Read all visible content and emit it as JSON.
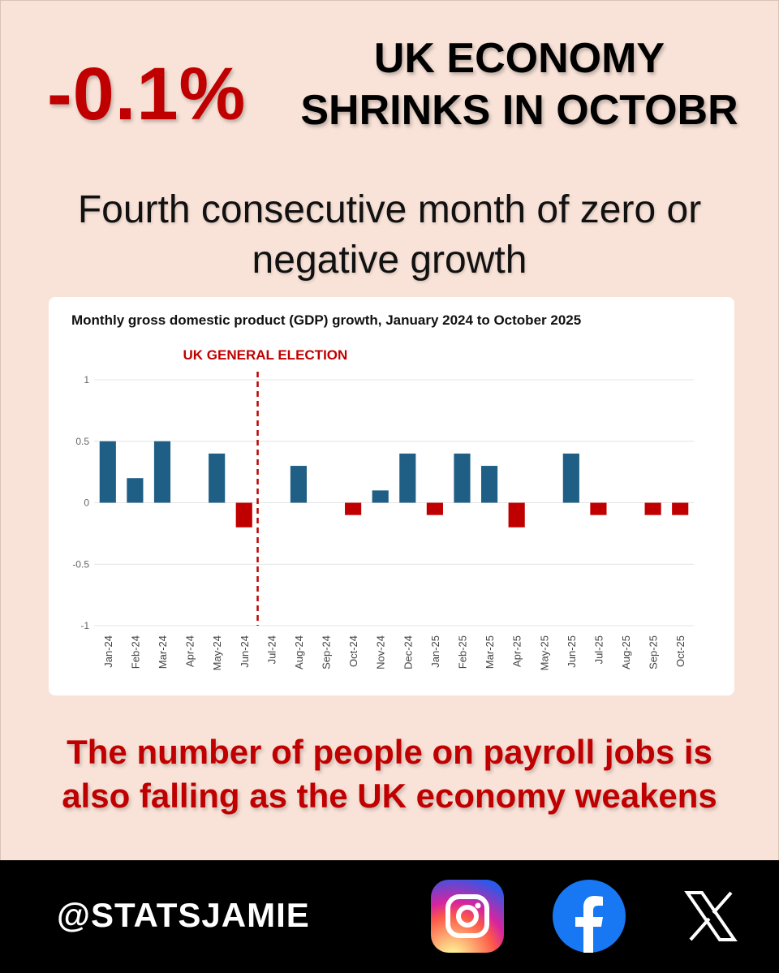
{
  "header": {
    "big_number": "-0.1%",
    "headline_line1": "UK ECONOMY",
    "headline_line2": "SHRINKS IN OCTOBR",
    "subhead_line1": "Fourth consecutive month of zero or",
    "subhead_line2": "negative growth"
  },
  "chart_data": {
    "type": "bar",
    "title": "Monthly gross domestic product (GDP) growth, January 2024 to October 2025",
    "xlabel": "",
    "ylabel": "",
    "ylim": [
      -1,
      1
    ],
    "yticks": [
      1,
      0.5,
      0,
      -0.5,
      -1
    ],
    "ytick_labels": [
      "1",
      "0.5",
      "0",
      "-0.5",
      "-1"
    ],
    "grid": true,
    "legend": "none",
    "categories": [
      "Jan-24",
      "Feb-24",
      "Mar-24",
      "Apr-24",
      "May-24",
      "Jun-24",
      "Jul-24",
      "Aug-24",
      "Sep-24",
      "Oct-24",
      "Nov-24",
      "Dec-24",
      "Jan-25",
      "Feb-25",
      "Mar-25",
      "Apr-25",
      "May-25",
      "Jun-25",
      "Jul-25",
      "Aug-25",
      "Sep-25",
      "Oct-25"
    ],
    "values": [
      0.5,
      0.2,
      0.5,
      0.0,
      0.4,
      -0.2,
      0.0,
      0.3,
      0.0,
      -0.1,
      0.1,
      0.4,
      -0.1,
      0.4,
      0.3,
      -0.2,
      0.0,
      0.4,
      -0.1,
      0.0,
      -0.1,
      -0.1
    ],
    "colors": {
      "positive": "#1f5f85",
      "negative": "#c00000",
      "annotation": "#c00000",
      "grid": "#e4e4e4"
    },
    "annotation": {
      "label": "UK GENERAL ELECTION",
      "between": [
        "Jun-24",
        "Jul-24"
      ]
    }
  },
  "footer": {
    "bottom_line1": "The number of people on payroll jobs is",
    "bottom_line2": "also falling as the UK economy weakens",
    "handle": "@STATSJAMIE",
    "icons": [
      "instagram-icon",
      "facebook-icon",
      "x-icon"
    ]
  }
}
